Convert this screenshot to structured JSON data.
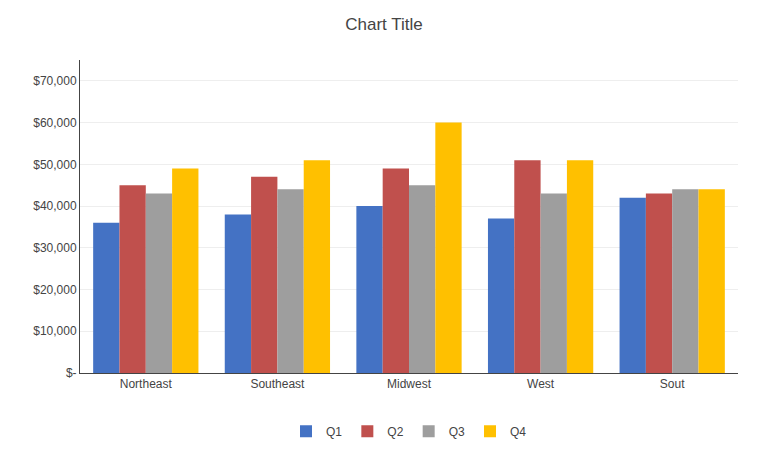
{
  "chart_data": {
    "type": "bar",
    "title": "Chart Title",
    "categories": [
      "Northeast",
      "Southeast",
      "Midwest",
      "West",
      "Sout"
    ],
    "series": [
      {
        "name": "Q1",
        "color": "#4472C4",
        "values": [
          36000,
          38000,
          40000,
          37000,
          42000
        ]
      },
      {
        "name": "Q2",
        "color": "#C0504D",
        "values": [
          45000,
          47000,
          49000,
          51000,
          43000
        ]
      },
      {
        "name": "Q3",
        "color": "#9E9E9E",
        "values": [
          43000,
          44000,
          45000,
          43000,
          44000
        ]
      },
      {
        "name": "Q4",
        "color": "#FFC000",
        "values": [
          49000,
          51000,
          60000,
          51000,
          44000
        ]
      }
    ],
    "ylim": [
      0,
      75000
    ],
    "yticks": [
      {
        "value": 0,
        "label": "$-"
      },
      {
        "value": 10000,
        "label": "$10,000"
      },
      {
        "value": 20000,
        "label": "$20,000"
      },
      {
        "value": 30000,
        "label": "$30,000"
      },
      {
        "value": 40000,
        "label": "$40,000"
      },
      {
        "value": 50000,
        "label": "$50,000"
      },
      {
        "value": 60000,
        "label": "$60,000"
      },
      {
        "value": 70000,
        "label": "$70,000"
      }
    ],
    "grid": true,
    "legend": "bottom"
  }
}
